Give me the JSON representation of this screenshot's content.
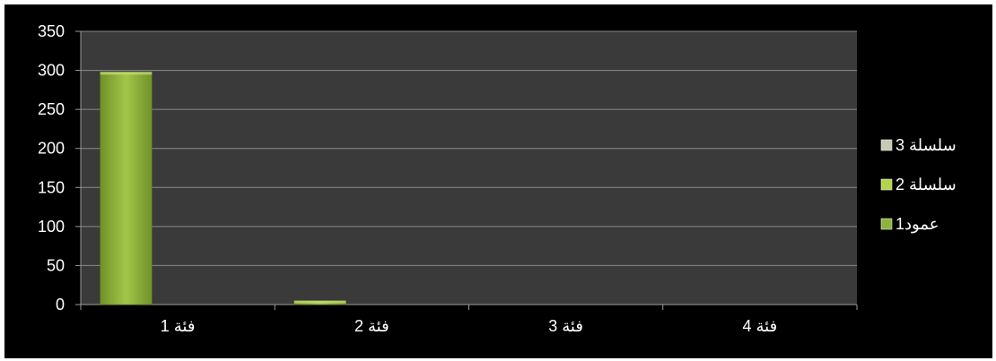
{
  "chart_data": {
    "type": "bar",
    "title": "",
    "xlabel": "",
    "ylabel": "",
    "categories": [
      "فئة 1",
      "فئة 2",
      "فئة 3",
      "فئة 4"
    ],
    "ylim": [
      0,
      350
    ],
    "yticks": [
      0,
      50,
      100,
      150,
      200,
      250,
      300,
      350
    ],
    "grid": true,
    "legend_position": "right",
    "series": [
      {
        "name": "عمود1",
        "values": [
          298,
          5,
          0,
          0
        ],
        "color": "#8db33a"
      },
      {
        "name": "سلسلة 2",
        "values": [
          0,
          0,
          0,
          0
        ],
        "color": "#b5d44a"
      },
      {
        "name": "سلسلة 3",
        "values": [
          0,
          0,
          0,
          0
        ],
        "color": "#c7c9b0"
      }
    ],
    "colors": {
      "background": "#000000",
      "plot_area": "#3a3a3a",
      "gridline": "#8a8a8a",
      "text": "#ffffff"
    }
  }
}
